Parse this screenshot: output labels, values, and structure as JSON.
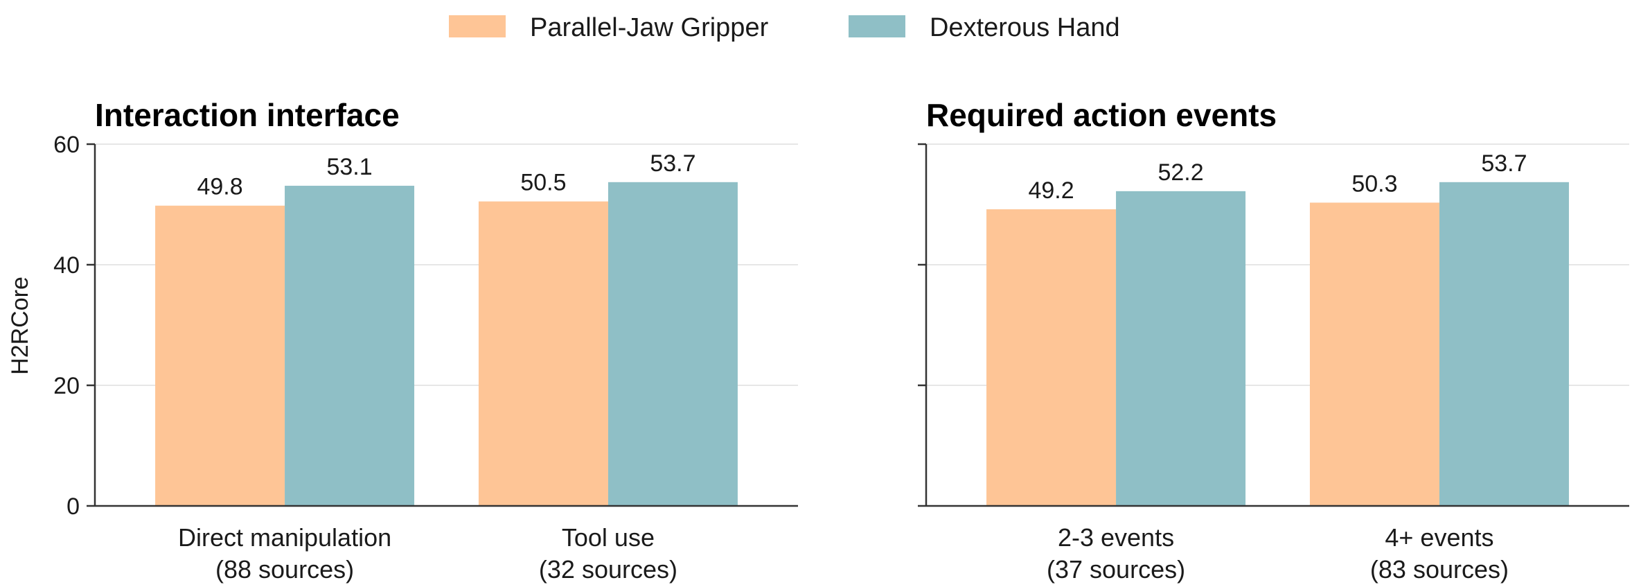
{
  "chart_data": [
    {
      "type": "bar",
      "title": "Interaction interface",
      "ylabel": "H2RCore",
      "ylim": [
        0,
        60
      ],
      "yticks": [
        0,
        20,
        40,
        60
      ],
      "grid": true,
      "categories": [
        {
          "line1": "Direct manipulation",
          "line2": "(88 sources)"
        },
        {
          "line1": "Tool use",
          "line2": "(32 sources)"
        }
      ],
      "series": [
        {
          "name": "Parallel-Jaw Gripper",
          "values": [
            49.8,
            50.5
          ]
        },
        {
          "name": "Dexterous Hand",
          "values": [
            53.1,
            53.7
          ]
        }
      ]
    },
    {
      "type": "bar",
      "title": "Required action events",
      "ylim": [
        0,
        60
      ],
      "grid": true,
      "categories": [
        {
          "line1": "2-3 events",
          "line2": "(37 sources)"
        },
        {
          "line1": "4+ events",
          "line2": "(83 sources)"
        }
      ],
      "series": [
        {
          "name": "Parallel-Jaw Gripper",
          "values": [
            49.2,
            50.3
          ]
        },
        {
          "name": "Dexterous Hand",
          "values": [
            52.2,
            53.7
          ]
        }
      ]
    }
  ],
  "legend": {
    "placement": "top-center",
    "items": [
      {
        "label": "Parallel-Jaw Gripper",
        "color": "#fec596"
      },
      {
        "label": "Dexterous Hand",
        "color": "#8fbfc6"
      }
    ]
  }
}
